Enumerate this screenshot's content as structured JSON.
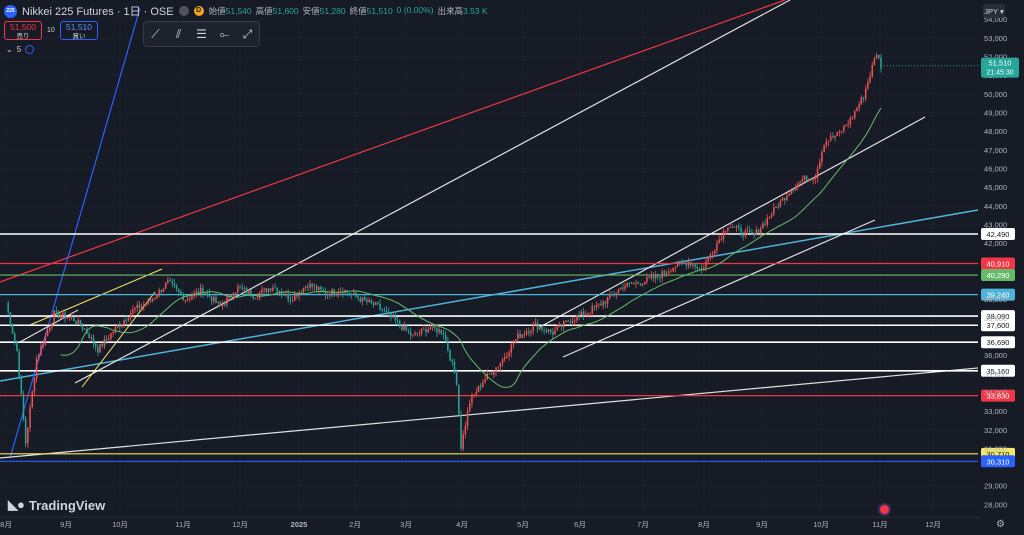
{
  "header": {
    "symbol_logo_text": "225",
    "symbol_title": "Nikkei 225 Futures · 1日 · OSE",
    "status_badge": "D",
    "ohlc": [
      {
        "label": "始値",
        "value": "51,540"
      },
      {
        "label": "高値",
        "value": "51,600"
      },
      {
        "label": "安値",
        "value": "51,280"
      },
      {
        "label": "終値",
        "value": "51,510"
      },
      {
        "label": "",
        "value": "0 (0.00%)"
      },
      {
        "label": "出来高",
        "value": "3.53 K"
      }
    ]
  },
  "trade": {
    "sell_price": "51,500",
    "sell_label": "売り",
    "lot": "10",
    "buy_price": "51,510",
    "buy_label": "買い"
  },
  "indicator": {
    "count": "5"
  },
  "currency": "JPY",
  "brand": "TradingView",
  "colors": {
    "background": "#171b26",
    "up_candle": "#ef5350",
    "down_candle": "#26a69a",
    "ma_line": "#66bb6a",
    "white_line": "#e0e0e0",
    "red_line": "#f23645",
    "cyan_line": "#4fb3d9",
    "blue_line": "#2962ff",
    "yellow_line": "#f5e663",
    "green_line": "#66bb6a"
  },
  "chart_data": {
    "type": "candlestick",
    "y_axis_ticks": [
      "54,000",
      "53,000",
      "52,000",
      "51,000",
      "50,000",
      "49,000",
      "48,000",
      "47,000",
      "46,000",
      "45,000",
      "44,000",
      "43,000",
      "42,000",
      "39,000",
      "38,000",
      "36,000",
      "35,000",
      "34,000",
      "33,000",
      "32,000",
      "31,000",
      "29,000",
      "28,000"
    ],
    "x_axis_ticks": [
      "8月",
      "9月",
      "10月",
      "11月",
      "12月",
      "2025",
      "2月",
      "3月",
      "4月",
      "5月",
      "6月",
      "7月",
      "8月",
      "9月",
      "10月",
      "11月",
      "12月"
    ],
    "ylim": [
      27700,
      54600
    ],
    "price_levels": [
      {
        "label": "42,490",
        "value": 42490,
        "color": "#ffffff"
      },
      {
        "label": "40,910",
        "value": 40910,
        "color": "#f23645"
      },
      {
        "label": "40,290",
        "value": 40290,
        "color": "#66bb6a"
      },
      {
        "label": "39,240",
        "value": 39240,
        "color": "#4fb3d9"
      },
      {
        "label": "38,090",
        "value": 38090,
        "color": "#ffffff"
      },
      {
        "label": "37,600",
        "value": 37600,
        "color": "#ffffff"
      },
      {
        "label": "36,690",
        "value": 36690,
        "color": "#ffffff"
      },
      {
        "label": "35,160",
        "value": 35160,
        "color": "#ffffff"
      },
      {
        "label": "33,830",
        "value": 33830,
        "color": "#f23645"
      },
      {
        "label": "30,710",
        "value": 30710,
        "color": "#f5e663"
      },
      {
        "label": "30,310",
        "value": 30310,
        "color": "#2962ff"
      }
    ],
    "last_price": {
      "label": "51,510",
      "countdown": "21:45:30",
      "value": 51510,
      "color": "#26a69a"
    },
    "series_anchors": [
      {
        "t": 0,
        "v": 38800
      },
      {
        "t": 5,
        "v": 36200
      },
      {
        "t": 9,
        "v": 31300
      },
      {
        "t": 14,
        "v": 35800
      },
      {
        "t": 22,
        "v": 38200
      },
      {
        "t": 30,
        "v": 38000
      },
      {
        "t": 36,
        "v": 37400
      },
      {
        "t": 42,
        "v": 36300
      },
      {
        "t": 50,
        "v": 37400
      },
      {
        "t": 58,
        "v": 38400
      },
      {
        "t": 66,
        "v": 38900
      },
      {
        "t": 74,
        "v": 39900
      },
      {
        "t": 82,
        "v": 39000
      },
      {
        "t": 90,
        "v": 39500
      },
      {
        "t": 98,
        "v": 38600
      },
      {
        "t": 106,
        "v": 39600
      },
      {
        "t": 114,
        "v": 39200
      },
      {
        "t": 122,
        "v": 39700
      },
      {
        "t": 130,
        "v": 39000
      },
      {
        "t": 138,
        "v": 39800
      },
      {
        "t": 146,
        "v": 39300
      },
      {
        "t": 154,
        "v": 39500
      },
      {
        "t": 162,
        "v": 39000
      },
      {
        "t": 170,
        "v": 38600
      },
      {
        "t": 178,
        "v": 37800
      },
      {
        "t": 186,
        "v": 37000
      },
      {
        "t": 194,
        "v": 37500
      },
      {
        "t": 200,
        "v": 37200
      },
      {
        "t": 206,
        "v": 34600
      },
      {
        "t": 208,
        "v": 31100
      },
      {
        "t": 212,
        "v": 33500
      },
      {
        "t": 218,
        "v": 34600
      },
      {
        "t": 226,
        "v": 35600
      },
      {
        "t": 234,
        "v": 37000
      },
      {
        "t": 242,
        "v": 37600
      },
      {
        "t": 250,
        "v": 37200
      },
      {
        "t": 258,
        "v": 37900
      },
      {
        "t": 266,
        "v": 38300
      },
      {
        "t": 274,
        "v": 38900
      },
      {
        "t": 282,
        "v": 39700
      },
      {
        "t": 290,
        "v": 39900
      },
      {
        "t": 298,
        "v": 40200
      },
      {
        "t": 306,
        "v": 40800
      },
      {
        "t": 312,
        "v": 41000
      },
      {
        "t": 318,
        "v": 40600
      },
      {
        "t": 324,
        "v": 41800
      },
      {
        "t": 330,
        "v": 43000
      },
      {
        "t": 336,
        "v": 42600
      },
      {
        "t": 342,
        "v": 42400
      },
      {
        "t": 350,
        "v": 43600
      },
      {
        "t": 358,
        "v": 44800
      },
      {
        "t": 364,
        "v": 45400
      },
      {
        "t": 370,
        "v": 45600
      },
      {
        "t": 374,
        "v": 47400
      },
      {
        "t": 380,
        "v": 47800
      },
      {
        "t": 386,
        "v": 48600
      },
      {
        "t": 392,
        "v": 49900
      },
      {
        "t": 398,
        "v": 52200
      },
      {
        "t": 400,
        "v": 51510
      }
    ]
  }
}
